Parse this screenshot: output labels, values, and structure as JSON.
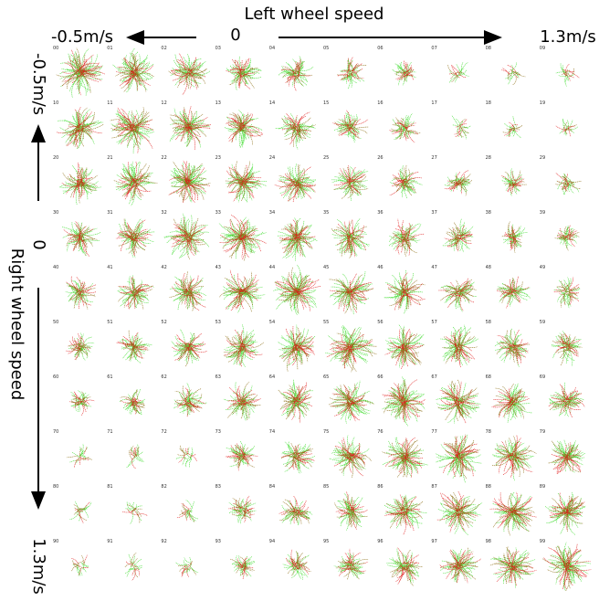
{
  "header": {
    "title": "Left wheel speed",
    "x_labels": [
      "-0.5m/s",
      "0",
      "1.3m/s"
    ]
  },
  "side": {
    "title": "Right wheel speed",
    "y_labels": [
      "-0.5m/s",
      "0",
      "1.3m/s"
    ]
  },
  "cells": [
    "00",
    "01",
    "02",
    "03",
    "04",
    "05",
    "06",
    "07",
    "08",
    "09",
    "10",
    "11",
    "12",
    "13",
    "14",
    "15",
    "16",
    "17",
    "18",
    "19",
    "20",
    "21",
    "22",
    "23",
    "24",
    "25",
    "26",
    "27",
    "28",
    "29",
    "30",
    "31",
    "32",
    "33",
    "34",
    "35",
    "36",
    "37",
    "38",
    "39",
    "40",
    "41",
    "42",
    "43",
    "44",
    "45",
    "46",
    "47",
    "48",
    "49",
    "50",
    "51",
    "52",
    "53",
    "54",
    "55",
    "56",
    "57",
    "58",
    "59",
    "60",
    "61",
    "62",
    "63",
    "64",
    "65",
    "66",
    "67",
    "68",
    "69",
    "70",
    "71",
    "72",
    "73",
    "74",
    "75",
    "76",
    "77",
    "78",
    "79",
    "80",
    "81",
    "82",
    "83",
    "84",
    "85",
    "86",
    "87",
    "88",
    "89",
    "90",
    "91",
    "92",
    "93",
    "94",
    "95",
    "96",
    "97",
    "98",
    "99"
  ]
}
